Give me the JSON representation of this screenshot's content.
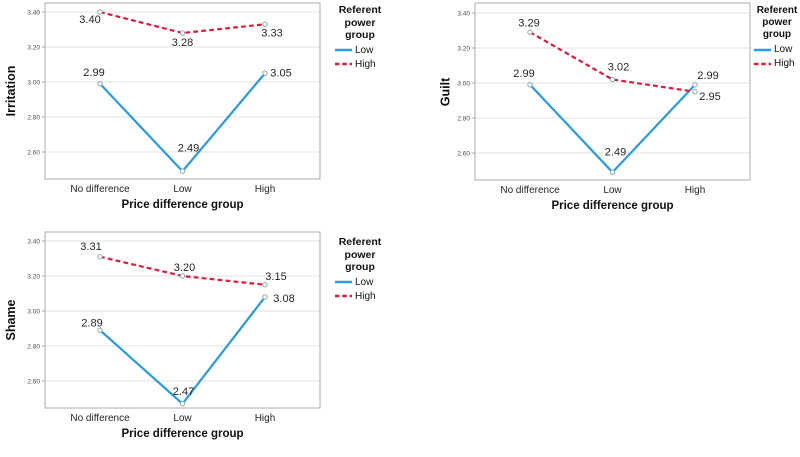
{
  "figure": {
    "background": "#ffffff",
    "style": {
      "low_color": "#279CE3",
      "high_color": "#E1193C",
      "marker_stroke": "#8BA7AE",
      "grid_color": "#E2E2E2",
      "frame_color": "#ABABAB",
      "label_color": "#262626"
    }
  },
  "chart_data": [
    {
      "type": "line",
      "title": "",
      "ylabel": "Irritation",
      "xlabel": "Price difference group",
      "categories": [
        "No difference",
        "Low",
        "High"
      ],
      "y_ticks": [
        3.4,
        3.2,
        3.0,
        2.8,
        2.6
      ],
      "y_tick_labels": [
        "3.40",
        "3.20",
        "3.00",
        "2.80",
        "2.60"
      ],
      "ylim": [
        2.45,
        3.45
      ],
      "grid": true,
      "legend_title": "Referent power group",
      "legend_position": "right",
      "series": [
        {
          "name": "Low",
          "style": "solid",
          "color": "#279CE3",
          "values": [
            2.99,
            2.49,
            3.05
          ],
          "labels": [
            "2.99",
            "2.49",
            "3.05"
          ],
          "label_offsets": [
            [
              -6,
              -8
            ],
            [
              6,
              -20
            ],
            [
              16,
              3
            ]
          ]
        },
        {
          "name": "High",
          "style": "dashed",
          "color": "#E1193C",
          "values": [
            3.4,
            3.28,
            3.33
          ],
          "labels": [
            "3.40",
            "3.28",
            "3.33"
          ],
          "label_offsets": [
            [
              -10,
              11
            ],
            [
              0,
              13
            ],
            [
              7,
              12
            ]
          ]
        }
      ]
    },
    {
      "type": "line",
      "title": "",
      "ylabel": "Guilt",
      "xlabel": "Price difference group",
      "categories": [
        "No difference",
        "Low",
        "High"
      ],
      "y_ticks": [
        3.4,
        3.2,
        3.0,
        2.8,
        2.6
      ],
      "y_tick_labels": [
        "3.40",
        "3.20",
        "3.00",
        "2.80",
        "2.60"
      ],
      "ylim": [
        2.45,
        3.45
      ],
      "grid": true,
      "legend_title": "Referent power group",
      "legend_position": "right",
      "series": [
        {
          "name": "Low",
          "style": "solid",
          "color": "#279CE3",
          "values": [
            2.99,
            2.49,
            2.99
          ],
          "labels": [
            "2.99",
            "2.49",
            "2.99"
          ],
          "label_offsets": [
            [
              -6,
              -8
            ],
            [
              3,
              -17
            ],
            [
              13,
              -6
            ]
          ]
        },
        {
          "name": "High",
          "style": "dashed",
          "color": "#E1193C",
          "values": [
            3.29,
            3.02,
            2.95
          ],
          "labels": [
            "3.29",
            "3.02",
            "2.95"
          ],
          "label_offsets": [
            [
              -1,
              -6
            ],
            [
              6,
              -9
            ],
            [
              15,
              8
            ]
          ]
        }
      ]
    },
    {
      "type": "line",
      "title": "",
      "ylabel": "Shame",
      "xlabel": "Price difference group",
      "categories": [
        "No difference",
        "Low",
        "High"
      ],
      "y_ticks": [
        3.4,
        3.2,
        3.0,
        2.8,
        2.6
      ],
      "y_tick_labels": [
        "3.40",
        "3.20",
        "3.00",
        "2.80",
        "2.60"
      ],
      "ylim": [
        2.45,
        3.45
      ],
      "grid": true,
      "legend_title": "Referent power group",
      "legend_position": "right",
      "series": [
        {
          "name": "Low",
          "style": "solid",
          "color": "#279CE3",
          "values": [
            2.89,
            2.47,
            3.08
          ],
          "labels": [
            "2.89",
            "2.47",
            "3.08"
          ],
          "label_offsets": [
            [
              -8,
              -4
            ],
            [
              1,
              -9
            ],
            [
              19,
              5
            ]
          ]
        },
        {
          "name": "High",
          "style": "dashed",
          "color": "#E1193C",
          "values": [
            3.31,
            3.2,
            3.15
          ],
          "labels": [
            "3.31",
            "3.20",
            "3.15"
          ],
          "label_offsets": [
            [
              -9,
              -7
            ],
            [
              2,
              -5
            ],
            [
              11,
              -5
            ]
          ]
        }
      ]
    }
  ]
}
